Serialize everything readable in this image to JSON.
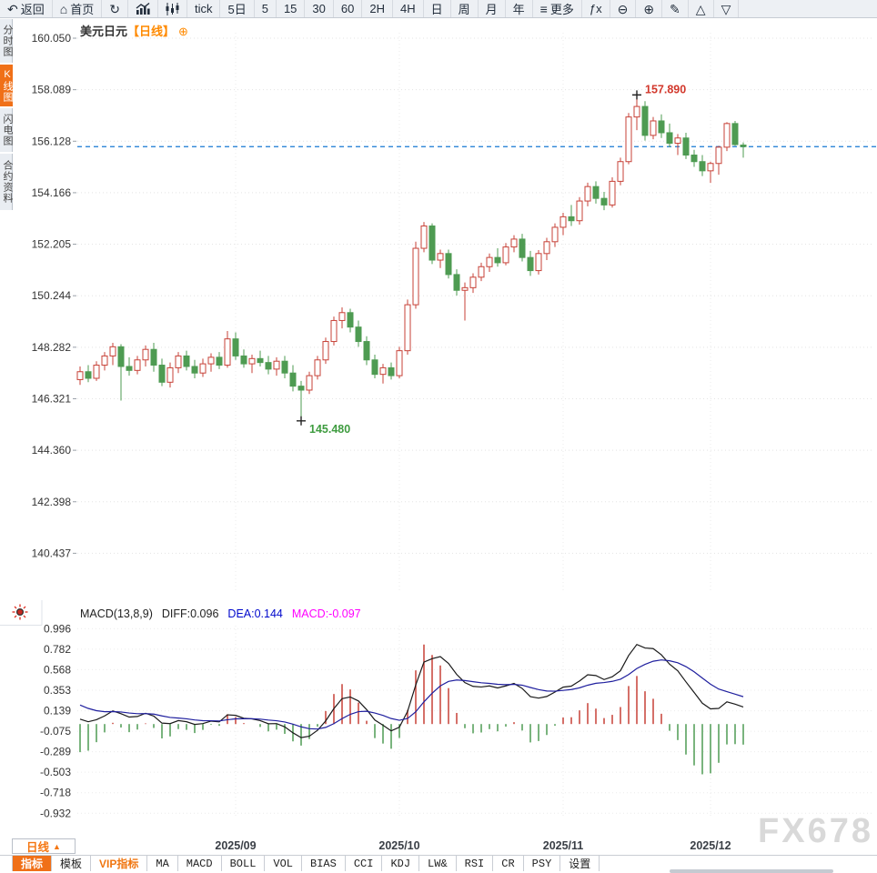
{
  "toolbar": {
    "items": [
      {
        "name": "back-button",
        "icon": "↶",
        "label": "返回"
      },
      {
        "name": "home-button",
        "icon": "⌂",
        "label": "首页"
      },
      {
        "name": "refresh-button",
        "icon": "↻",
        "label": ""
      },
      {
        "name": "bar-chart-button",
        "svg": "bars",
        "label": ""
      },
      {
        "name": "candlestick-button",
        "svg": "candles",
        "label": ""
      },
      {
        "name": "tick-button",
        "label": "tick"
      },
      {
        "name": "period-5d-button",
        "label": "5日"
      },
      {
        "name": "period-5-button",
        "label": "5"
      },
      {
        "name": "period-15-button",
        "label": "15"
      },
      {
        "name": "period-30-button",
        "label": "30"
      },
      {
        "name": "period-60-button",
        "label": "60"
      },
      {
        "name": "period-2h-button",
        "label": "2H"
      },
      {
        "name": "period-4h-button",
        "label": "4H"
      },
      {
        "name": "period-day-button",
        "label": "日"
      },
      {
        "name": "period-week-button",
        "label": "周"
      },
      {
        "name": "period-month-button",
        "label": "月"
      },
      {
        "name": "period-year-button",
        "label": "年"
      },
      {
        "name": "more-button",
        "icon": "≡",
        "label": "更多"
      },
      {
        "name": "fx-button",
        "label": "ƒx"
      },
      {
        "name": "zoom-out-button",
        "icon": "⊖",
        "label": ""
      },
      {
        "name": "zoom-in-button",
        "icon": "⊕",
        "label": ""
      },
      {
        "name": "draw-button",
        "icon": "✎",
        "label": ""
      },
      {
        "name": "triangle-up-button",
        "icon": "△",
        "label": ""
      },
      {
        "name": "triangle-down-button",
        "icon": "▽",
        "label": ""
      }
    ]
  },
  "sidebar": {
    "items": [
      {
        "name": "sidebar-item-time-chart",
        "label": "分时图",
        "active": false
      },
      {
        "name": "sidebar-item-kline-chart",
        "label": "K线图",
        "active": true
      },
      {
        "name": "sidebar-item-lightning-chart",
        "label": "闪电图",
        "active": false
      },
      {
        "name": "sidebar-item-contract-info",
        "label": "合约资料",
        "active": false
      }
    ]
  },
  "header": {
    "symbol": "美元日元",
    "period": "【日线】",
    "add_icon": "⊕"
  },
  "macd_header": {
    "params": "MACD(13,8,9)",
    "diff": "DIFF:0.096",
    "dea": "DEA:0.144",
    "macd": "MACD:-0.097"
  },
  "bottom": {
    "timeframe": "日线",
    "timeframe_arrow": "▲",
    "watermark": "FX678",
    "tabs": [
      {
        "label": "指标",
        "active": true
      },
      {
        "label": "模板"
      },
      {
        "label": "VIP指标",
        "vip": true
      },
      {
        "label": "MA",
        "mono": true
      },
      {
        "label": "MACD",
        "mono": true
      },
      {
        "label": "BOLL",
        "mono": true
      },
      {
        "label": "VOL",
        "mono": true
      },
      {
        "label": "BIAS",
        "mono": true
      },
      {
        "label": "CCI",
        "mono": true
      },
      {
        "label": "KDJ",
        "mono": true
      },
      {
        "label": "LW&",
        "mono": true
      },
      {
        "label": "RSI",
        "mono": true
      },
      {
        "label": "CR",
        "mono": true
      },
      {
        "label": "PSY",
        "mono": true
      },
      {
        "label": "设置"
      }
    ]
  },
  "chart_data": {
    "type": "candlestick+macd",
    "title": "美元日元 日线",
    "y_axis_labels": [
      "160.050",
      "158.089",
      "156.128",
      "154.166",
      "152.205",
      "150.244",
      "148.282",
      "146.321",
      "144.360",
      "142.398",
      "140.437"
    ],
    "x_axis_months": [
      {
        "label": "2025/09",
        "index": 19
      },
      {
        "label": "2025/10",
        "index": 39
      },
      {
        "label": "2025/11",
        "index": 59
      },
      {
        "label": "2025/12",
        "index": 77
      }
    ],
    "current_price_line": 155.92,
    "annotations": {
      "high": {
        "index": 68,
        "price": 157.89,
        "label": "157.890"
      },
      "low": {
        "index": 27,
        "price": 145.48,
        "label": "145.480"
      }
    },
    "candles_ohlc": [
      [
        147.05,
        147.55,
        146.85,
        147.35
      ],
      [
        147.35,
        147.6,
        146.95,
        147.1
      ],
      [
        147.1,
        147.75,
        147.0,
        147.6
      ],
      [
        147.6,
        148.1,
        147.4,
        147.95
      ],
      [
        147.95,
        148.45,
        147.6,
        148.3
      ],
      [
        148.3,
        148.4,
        146.25,
        147.55
      ],
      [
        147.55,
        147.9,
        147.2,
        147.4
      ],
      [
        147.4,
        147.95,
        147.25,
        147.8
      ],
      [
        147.8,
        148.35,
        147.55,
        148.2
      ],
      [
        148.2,
        148.45,
        147.35,
        147.6
      ],
      [
        147.6,
        147.85,
        146.8,
        146.95
      ],
      [
        146.95,
        147.7,
        146.75,
        147.5
      ],
      [
        147.5,
        148.1,
        147.3,
        147.95
      ],
      [
        147.95,
        148.15,
        147.4,
        147.55
      ],
      [
        147.55,
        147.8,
        147.1,
        147.3
      ],
      [
        147.3,
        147.85,
        147.15,
        147.65
      ],
      [
        147.65,
        148.05,
        147.35,
        147.9
      ],
      [
        147.9,
        148.1,
        147.45,
        147.6
      ],
      [
        147.6,
        148.9,
        147.5,
        148.6
      ],
      [
        148.6,
        148.85,
        147.8,
        147.95
      ],
      [
        147.95,
        148.2,
        147.5,
        147.65
      ],
      [
        147.65,
        148.0,
        147.3,
        147.85
      ],
      [
        147.85,
        148.15,
        147.55,
        147.7
      ],
      [
        147.7,
        147.95,
        147.25,
        147.45
      ],
      [
        147.45,
        147.9,
        147.2,
        147.75
      ],
      [
        147.75,
        147.95,
        147.1,
        147.3
      ],
      [
        147.3,
        147.6,
        146.6,
        146.8
      ],
      [
        146.8,
        147.0,
        145.48,
        146.65
      ],
      [
        146.65,
        147.35,
        146.5,
        147.2
      ],
      [
        147.2,
        147.95,
        147.05,
        147.8
      ],
      [
        147.8,
        148.65,
        147.65,
        148.5
      ],
      [
        148.5,
        149.45,
        148.35,
        149.3
      ],
      [
        149.3,
        149.8,
        149.0,
        149.6
      ],
      [
        149.6,
        149.75,
        148.85,
        149.05
      ],
      [
        149.05,
        149.3,
        148.3,
        148.5
      ],
      [
        148.5,
        148.7,
        147.6,
        147.8
      ],
      [
        147.8,
        148.0,
        147.1,
        147.25
      ],
      [
        147.25,
        147.65,
        146.9,
        147.5
      ],
      [
        147.5,
        147.7,
        147.05,
        147.2
      ],
      [
        147.2,
        148.3,
        147.1,
        148.15
      ],
      [
        148.15,
        150.1,
        148.0,
        149.9
      ],
      [
        149.9,
        152.3,
        149.75,
        152.05
      ],
      [
        152.05,
        153.05,
        151.9,
        152.9
      ],
      [
        152.9,
        153.0,
        151.45,
        151.6
      ],
      [
        151.6,
        152.0,
        151.3,
        151.85
      ],
      [
        151.85,
        152.0,
        150.9,
        151.05
      ],
      [
        151.05,
        151.25,
        150.25,
        150.45
      ],
      [
        150.45,
        150.75,
        149.3,
        150.55
      ],
      [
        150.55,
        151.1,
        150.35,
        150.95
      ],
      [
        150.95,
        151.5,
        150.8,
        151.35
      ],
      [
        151.35,
        151.85,
        151.15,
        151.7
      ],
      [
        151.7,
        152.05,
        151.35,
        151.5
      ],
      [
        151.5,
        152.25,
        151.4,
        152.1
      ],
      [
        152.1,
        152.55,
        151.9,
        152.4
      ],
      [
        152.4,
        152.6,
        151.55,
        151.7
      ],
      [
        151.7,
        151.95,
        151.0,
        151.2
      ],
      [
        151.2,
        151.98,
        151.05,
        151.85
      ],
      [
        151.85,
        152.45,
        151.6,
        152.3
      ],
      [
        152.3,
        153.0,
        152.1,
        152.85
      ],
      [
        152.85,
        153.4,
        152.55,
        153.25
      ],
      [
        153.25,
        153.7,
        152.9,
        153.1
      ],
      [
        153.1,
        154.0,
        152.95,
        153.85
      ],
      [
        153.85,
        154.55,
        153.65,
        154.4
      ],
      [
        154.4,
        154.6,
        153.75,
        153.95
      ],
      [
        153.95,
        154.2,
        153.5,
        153.7
      ],
      [
        153.7,
        154.75,
        153.6,
        154.6
      ],
      [
        154.6,
        155.5,
        154.45,
        155.35
      ],
      [
        155.35,
        157.2,
        155.25,
        157.05
      ],
      [
        157.05,
        157.89,
        156.55,
        157.45
      ],
      [
        157.45,
        157.65,
        156.15,
        156.35
      ],
      [
        156.35,
        157.05,
        156.2,
        156.9
      ],
      [
        156.9,
        157.15,
        156.25,
        156.45
      ],
      [
        156.45,
        156.8,
        155.9,
        156.05
      ],
      [
        156.05,
        156.4,
        155.6,
        156.25
      ],
      [
        156.25,
        156.45,
        155.45,
        155.6
      ],
      [
        155.6,
        155.8,
        155.15,
        155.35
      ],
      [
        155.35,
        155.6,
        154.8,
        155.0
      ],
      [
        155.0,
        155.35,
        154.54,
        155.28
      ],
      [
        155.28,
        155.95,
        154.85,
        155.9
      ],
      [
        155.9,
        156.85,
        155.75,
        156.8
      ],
      [
        156.8,
        156.9,
        155.95,
        156.0
      ],
      [
        155.98,
        156.08,
        155.5,
        155.92
      ]
    ],
    "macd": {
      "params": {
        "fast": 8,
        "slow": 13,
        "signal": 9
      },
      "y_axis_labels": [
        "0.996",
        "0.782",
        "0.568",
        "0.353",
        "0.139",
        "-0.075",
        "-0.289",
        "-0.503",
        "-0.718",
        "-0.932"
      ]
    },
    "colors": {
      "up": "#c74137",
      "down": "#4e9b52",
      "price_line": "#1677d2",
      "diff_line": "#1a1a1a",
      "dea_line": "#1f1f9e",
      "annotation_high": "#d2372b",
      "annotation_low": "#3f9c40",
      "accent_orange": "#f07018"
    }
  }
}
